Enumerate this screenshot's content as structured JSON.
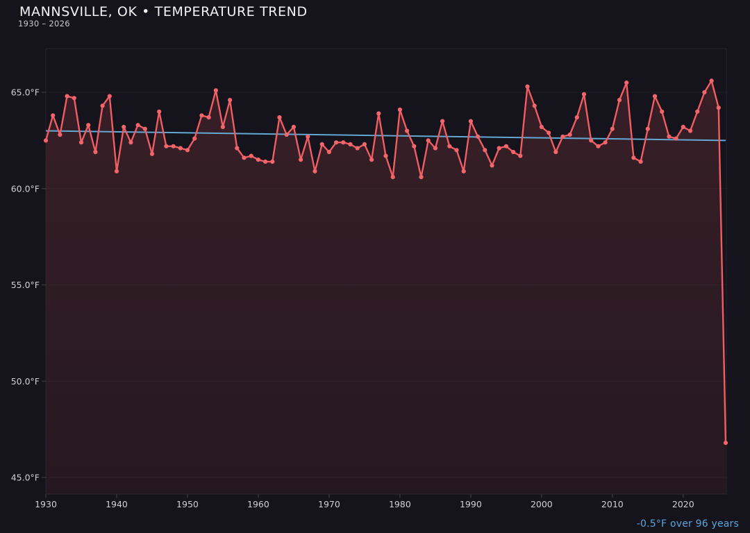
{
  "header": {
    "title": "MANNSVILLE, OK • TEMPERATURE TREND",
    "subtitle": "1930 – 2026"
  },
  "footer": {
    "trend_note": "-0.5°F over 96 years"
  },
  "chart_data": {
    "type": "line",
    "title": "MANNSVILLE, OK • TEMPERATURE TREND",
    "subtitle": "1930 – 2026",
    "unit": "°F",
    "xlabel": "",
    "ylabel": "",
    "grid": "faint horizontal gridlines, dark theme",
    "legend_position": "none",
    "x_range": [
      1930,
      2026
    ],
    "ylim": [
      44.1,
      67.3
    ],
    "y_ticks": [
      65.0,
      60.0,
      55.0,
      50.0,
      45.0
    ],
    "y_tick_labels": [
      "65.0°F",
      "60.0°F",
      "55.0°F",
      "50.0°F",
      "45.0°F"
    ],
    "x_ticks": [
      1930,
      1940,
      1950,
      1960,
      1970,
      1980,
      1990,
      2000,
      2010,
      2020
    ],
    "x_tick_labels": [
      "1930",
      "1940",
      "1950",
      "1960",
      "1970",
      "1980",
      "1990",
      "2000",
      "2010",
      "2020"
    ],
    "years": [
      1930,
      1931,
      1932,
      1933,
      1934,
      1935,
      1936,
      1937,
      1938,
      1939,
      1940,
      1941,
      1942,
      1943,
      1944,
      1945,
      1946,
      1947,
      1948,
      1949,
      1950,
      1951,
      1952,
      1953,
      1954,
      1955,
      1956,
      1957,
      1958,
      1959,
      1960,
      1961,
      1962,
      1963,
      1964,
      1965,
      1966,
      1967,
      1968,
      1969,
      1970,
      1971,
      1972,
      1973,
      1974,
      1975,
      1976,
      1977,
      1978,
      1979,
      1980,
      1981,
      1982,
      1983,
      1984,
      1985,
      1986,
      1987,
      1988,
      1989,
      1990,
      1991,
      1992,
      1993,
      1994,
      1995,
      1996,
      1997,
      1998,
      1999,
      2000,
      2001,
      2002,
      2003,
      2004,
      2005,
      2006,
      2007,
      2008,
      2009,
      2010,
      2011,
      2012,
      2013,
      2014,
      2015,
      2016,
      2017,
      2018,
      2019,
      2020,
      2021,
      2022,
      2023,
      2024,
      2025,
      2026
    ],
    "values_f": [
      62.5,
      63.8,
      62.8,
      64.8,
      64.7,
      62.4,
      63.3,
      61.9,
      64.3,
      64.8,
      60.9,
      63.2,
      62.4,
      63.3,
      63.1,
      61.8,
      64.0,
      62.2,
      62.2,
      62.1,
      62.0,
      62.6,
      63.8,
      63.7,
      65.1,
      63.2,
      64.6,
      62.1,
      61.6,
      61.7,
      61.5,
      61.4,
      61.4,
      63.7,
      62.8,
      63.2,
      61.5,
      62.7,
      60.9,
      62.3,
      61.9,
      62.4,
      62.4,
      62.3,
      62.1,
      62.3,
      61.5,
      63.9,
      61.7,
      60.6,
      64.1,
      63.0,
      62.2,
      60.6,
      62.5,
      62.1,
      63.5,
      62.2,
      62.0,
      60.9,
      63.5,
      62.7,
      62.0,
      61.2,
      62.1,
      62.2,
      61.9,
      61.7,
      65.3,
      64.3,
      63.2,
      62.9,
      61.9,
      62.7,
      62.8,
      63.7,
      64.9,
      62.5,
      62.2,
      62.4,
      63.1,
      64.6,
      65.5,
      61.6,
      61.4,
      63.1,
      64.8,
      64.0,
      62.7,
      62.6,
      63.2,
      63.0,
      64.0,
      65.0,
      65.6,
      64.2,
      46.8
    ],
    "trend_line": {
      "start_year": 1930,
      "end_year": 2026,
      "start_f": 63.0,
      "end_f": 62.5,
      "change_f": -0.5,
      "span_years": 96,
      "note": "-0.5°F over 96 years"
    },
    "colors": {
      "background": "#15131b",
      "line": "#f05d63",
      "marker": "#f2656b",
      "trend": "#64a9d4",
      "fill_top": "rgba(240,93,99,0.17)",
      "fill_bottom": "rgba(240,93,99,0.07)",
      "frame": "rgba(255,255,255,0.07)",
      "gridline": "rgba(255,255,255,0.04)",
      "tick": "#3c3b45",
      "tick_label": "#cfd0d5",
      "title": "#f4f4f6",
      "subtitle": "#c9cad0",
      "footer": "#5aa7dc"
    }
  }
}
